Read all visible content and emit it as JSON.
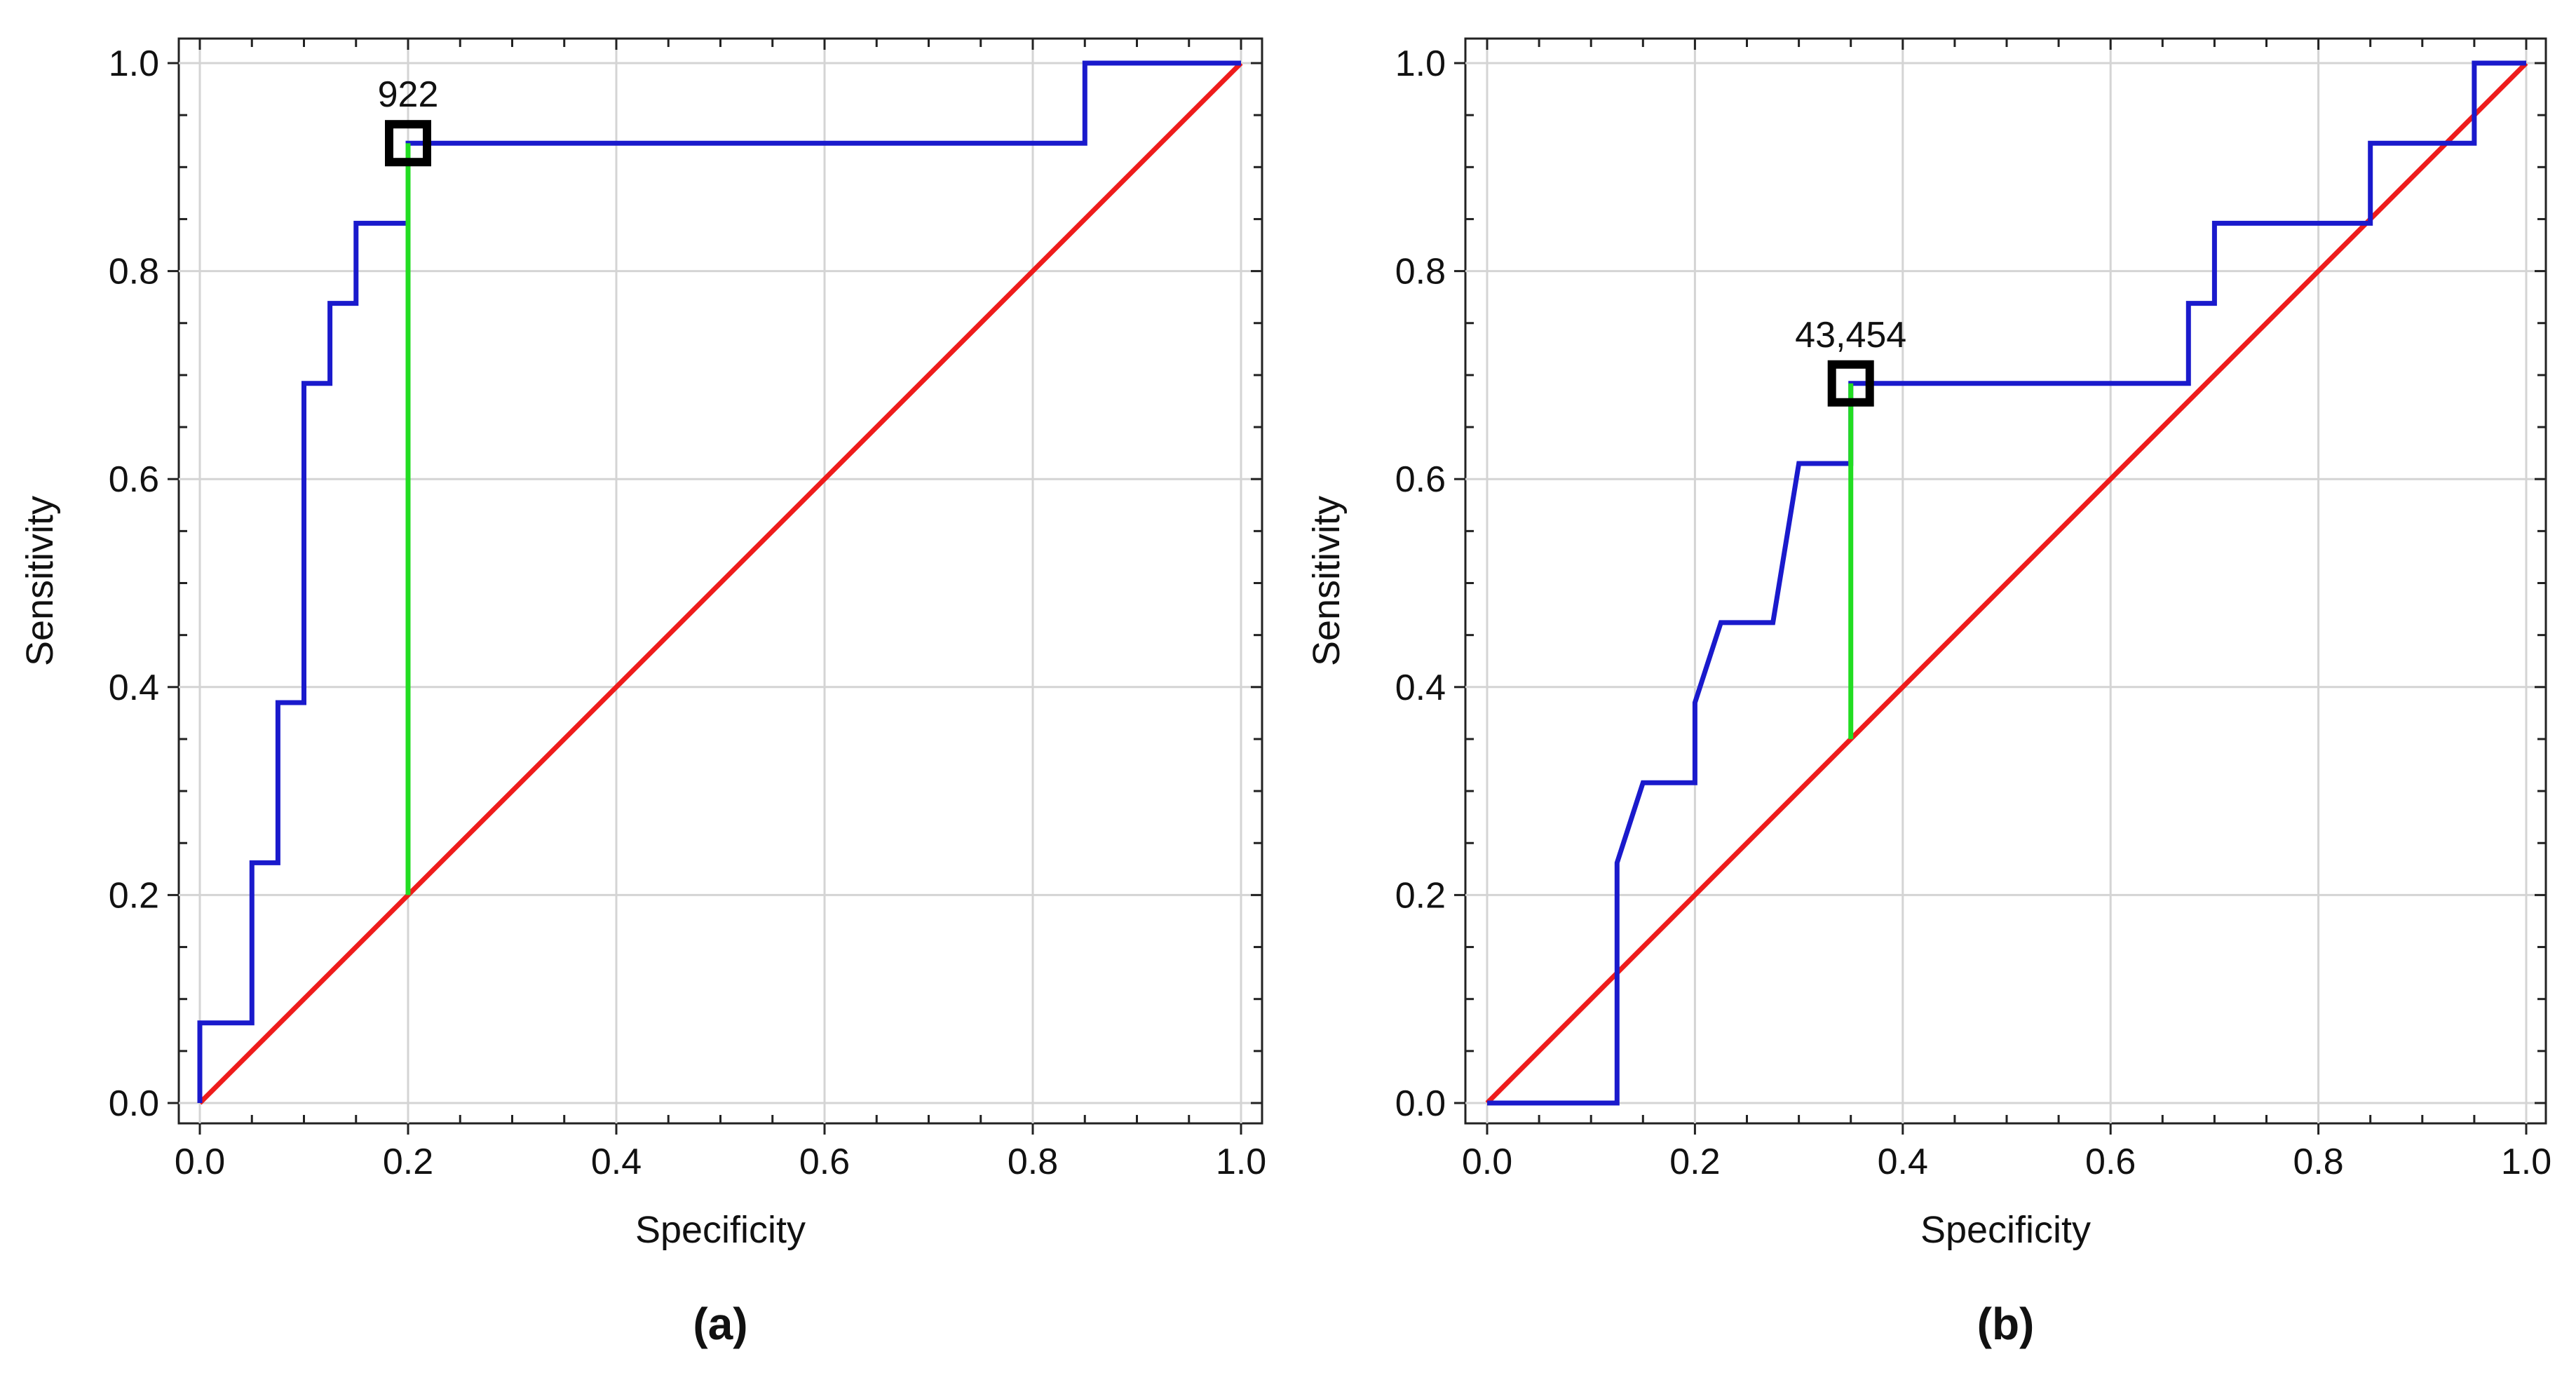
{
  "chart_data": [
    {
      "type": "line",
      "panel_label": "(a)",
      "xlabel": "Specificity",
      "ylabel": "Sensitivity",
      "xlim": [
        0,
        1
      ],
      "ylim": [
        0,
        1
      ],
      "ticks": [
        "0.0",
        "0.2",
        "0.4",
        "0.6",
        "0.8",
        "1.0"
      ],
      "grid": true,
      "series": [
        {
          "name": "ROC curve",
          "color": "#1a1acc",
          "x": [
            0,
            0,
            0.05,
            0.05,
            0.075,
            0.075,
            0.1,
            0.1,
            0.125,
            0.125,
            0.15,
            0.15,
            0.2,
            0.2,
            0.85,
            0.85,
            1.0
          ],
          "y": [
            0,
            0.077,
            0.077,
            0.231,
            0.231,
            0.385,
            0.385,
            0.692,
            0.692,
            0.769,
            0.769,
            0.846,
            0.846,
            0.923,
            0.923,
            1.0,
            1.0
          ]
        },
        {
          "name": "Reference line",
          "color": "#ee1c1c",
          "x": [
            0,
            1
          ],
          "y": [
            0,
            1
          ]
        },
        {
          "name": "Youden index",
          "color": "#22dd22",
          "x": [
            0.2,
            0.2
          ],
          "y": [
            0.2,
            0.923
          ]
        }
      ],
      "cutoff": {
        "label": "922",
        "x": 0.2,
        "y": 0.923
      }
    },
    {
      "type": "line",
      "panel_label": "(b)",
      "xlabel": "Specificity",
      "ylabel": "Sensitivity",
      "xlim": [
        0,
        1
      ],
      "ylim": [
        0,
        1
      ],
      "ticks": [
        "0.0",
        "0.2",
        "0.4",
        "0.6",
        "0.8",
        "1.0"
      ],
      "grid": true,
      "series": [
        {
          "name": "ROC curve",
          "color": "#1a1acc",
          "x": [
            0,
            0.125,
            0.125,
            0.15,
            0.2,
            0.2,
            0.225,
            0.275,
            0.3,
            0.35,
            0.35,
            0.675,
            0.675,
            0.7,
            0.7,
            0.85,
            0.85,
            0.95,
            0.95,
            1.0
          ],
          "y": [
            0,
            0,
            0.231,
            0.308,
            0.308,
            0.385,
            0.462,
            0.462,
            0.615,
            0.615,
            0.692,
            0.692,
            0.769,
            0.769,
            0.846,
            0.846,
            0.923,
            0.923,
            1.0,
            1.0
          ]
        },
        {
          "name": "Reference line",
          "color": "#ee1c1c",
          "x": [
            0,
            1
          ],
          "y": [
            0,
            1
          ]
        },
        {
          "name": "Youden index",
          "color": "#22dd22",
          "x": [
            0.35,
            0.35
          ],
          "y": [
            0.35,
            0.692
          ]
        }
      ],
      "cutoff": {
        "label": "43,454",
        "x": 0.35,
        "y": 0.692
      }
    }
  ]
}
